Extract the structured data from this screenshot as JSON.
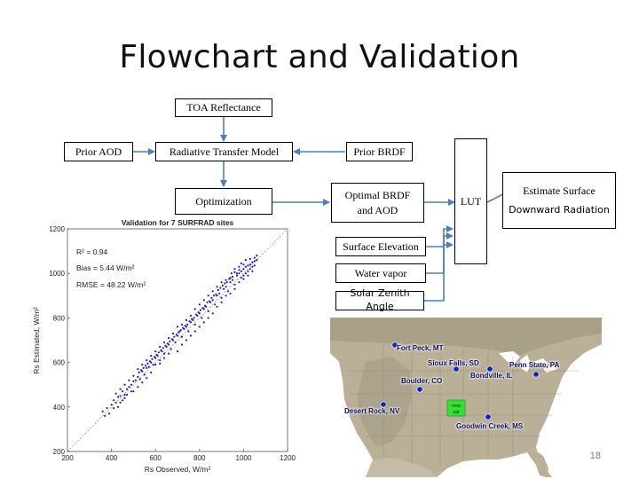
{
  "slide": {
    "title": "Flowchart and Validation",
    "page_number": "18"
  },
  "flowchart": {
    "toa_reflectance": "TOA Reflectance",
    "prior_aod": "Prior AOD",
    "radiative_transfer_model": "Radiative Transfer Model",
    "prior_brdf": "Prior BRDF",
    "optimization": "Optimization",
    "optimal_brdf_line1": "Optimal BRDF",
    "optimal_brdf_line2": "and AOD",
    "lut": "LUT",
    "estimate_line1": "Estimate Surface",
    "estimate_line2": "Downward Radiation",
    "surface_elevation": "Surface Elevation",
    "water_vapor": "Water vapor",
    "solar_zenith_angle": "Solar Zenith Angle"
  },
  "chart_data": {
    "type": "scatter",
    "title": "Validation for 7 SURFRAD sites",
    "xlabel": "Rs Observed, W/m²",
    "ylabel": "Rs Estimated, W/m²",
    "xlim": [
      200,
      1200
    ],
    "ylim": [
      200,
      1200
    ],
    "xticks": [
      "200",
      "400",
      "600",
      "800",
      "1000",
      "1200"
    ],
    "yticks": [
      "200",
      "400",
      "600",
      "800",
      "1000",
      "1200"
    ],
    "annotations": [
      "R² = 0.94",
      "Bias = 5.44 W/m²",
      "RMSE = 48.22 W/m²"
    ],
    "reference_line": "1:1",
    "point_color": "#1a1acc",
    "series": [
      {
        "points": [
          [
            360,
            380
          ],
          [
            380,
            395
          ],
          [
            400,
            410
          ],
          [
            410,
            430
          ],
          [
            420,
            420
          ],
          [
            430,
            445
          ],
          [
            440,
            450
          ],
          [
            450,
            470
          ],
          [
            460,
            455
          ],
          [
            470,
            480
          ],
          [
            480,
            490
          ],
          [
            490,
            500
          ],
          [
            500,
            515
          ],
          [
            510,
            520
          ],
          [
            520,
            535
          ],
          [
            530,
            525
          ],
          [
            540,
            560
          ],
          [
            550,
            545
          ],
          [
            560,
            575
          ],
          [
            570,
            580
          ],
          [
            580,
            600
          ],
          [
            590,
            590
          ],
          [
            600,
            620
          ],
          [
            610,
            630
          ],
          [
            620,
            610
          ],
          [
            630,
            650
          ],
          [
            640,
            640
          ],
          [
            650,
            670
          ],
          [
            660,
            680
          ],
          [
            670,
            660
          ],
          [
            680,
            700
          ],
          [
            690,
            690
          ],
          [
            700,
            720
          ],
          [
            710,
            740
          ],
          [
            720,
            715
          ],
          [
            730,
            750
          ],
          [
            740,
            760
          ],
          [
            750,
            740
          ],
          [
            760,
            780
          ],
          [
            770,
            790
          ],
          [
            780,
            770
          ],
          [
            790,
            810
          ],
          [
            800,
            820
          ],
          [
            810,
            800
          ],
          [
            820,
            840
          ],
          [
            830,
            850
          ],
          [
            840,
            830
          ],
          [
            850,
            870
          ],
          [
            860,
            880
          ],
          [
            870,
            860
          ],
          [
            880,
            900
          ],
          [
            890,
            910
          ],
          [
            900,
            890
          ],
          [
            910,
            930
          ],
          [
            920,
            940
          ],
          [
            930,
            920
          ],
          [
            940,
            960
          ],
          [
            950,
            970
          ],
          [
            960,
            950
          ],
          [
            970,
            990
          ],
          [
            980,
            1000
          ],
          [
            990,
            980
          ],
          [
            1000,
            1020
          ],
          [
            1010,
            1030
          ],
          [
            1020,
            1010
          ],
          [
            1030,
            1040
          ],
          [
            1040,
            1050
          ],
          [
            1050,
            1035
          ],
          [
            1060,
            1060
          ],
          [
            1000,
            990
          ],
          [
            990,
            1010
          ],
          [
            1010,
            1000
          ],
          [
            1020,
            1035
          ],
          [
            1030,
            1020
          ],
          [
            1040,
            1030
          ],
          [
            1050,
            1055
          ],
          [
            980,
            1015
          ],
          [
            970,
            1000
          ],
          [
            960,
            1005
          ],
          [
            950,
            985
          ],
          [
            945,
            1000
          ],
          [
            935,
            975
          ],
          [
            925,
            960
          ],
          [
            915,
            955
          ],
          [
            905,
            945
          ],
          [
            895,
            935
          ],
          [
            885,
            925
          ],
          [
            875,
            905
          ],
          [
            865,
            900
          ],
          [
            855,
            890
          ],
          [
            845,
            875
          ],
          [
            835,
            870
          ],
          [
            825,
            855
          ],
          [
            815,
            845
          ],
          [
            805,
            835
          ],
          [
            795,
            825
          ],
          [
            785,
            815
          ],
          [
            775,
            800
          ],
          [
            765,
            795
          ],
          [
            755,
            785
          ],
          [
            745,
            770
          ],
          [
            735,
            765
          ],
          [
            725,
            755
          ],
          [
            715,
            745
          ],
          [
            705,
            735
          ],
          [
            695,
            725
          ],
          [
            685,
            715
          ],
          [
            675,
            705
          ],
          [
            665,
            695
          ],
          [
            655,
            685
          ],
          [
            645,
            675
          ],
          [
            635,
            665
          ],
          [
            625,
            655
          ],
          [
            615,
            645
          ],
          [
            605,
            635
          ],
          [
            595,
            625
          ],
          [
            585,
            615
          ],
          [
            575,
            605
          ],
          [
            565,
            595
          ],
          [
            555,
            585
          ],
          [
            545,
            575
          ],
          [
            535,
            565
          ],
          [
            525,
            555
          ],
          [
            880,
            850
          ],
          [
            900,
            870
          ],
          [
            920,
            900
          ],
          [
            940,
            910
          ],
          [
            960,
            930
          ],
          [
            980,
            960
          ],
          [
            1000,
            975
          ],
          [
            1020,
            990
          ],
          [
            1040,
            1010
          ],
          [
            700,
            650
          ],
          [
            720,
            680
          ],
          [
            740,
            700
          ],
          [
            760,
            720
          ],
          [
            780,
            740
          ],
          [
            800,
            760
          ],
          [
            820,
            780
          ],
          [
            840,
            800
          ],
          [
            860,
            820
          ],
          [
            600,
            590
          ],
          [
            620,
            595
          ],
          [
            640,
            620
          ],
          [
            660,
            640
          ],
          [
            500,
            470
          ],
          [
            520,
            490
          ],
          [
            540,
            510
          ],
          [
            560,
            530
          ],
          [
            580,
            555
          ],
          [
            450,
            430
          ],
          [
            470,
            455
          ],
          [
            490,
            470
          ],
          [
            430,
            400
          ],
          [
            410,
            395
          ],
          [
            390,
            370
          ],
          [
            370,
            360
          ],
          [
            440,
            420
          ],
          [
            460,
            440
          ],
          [
            990,
            1045
          ],
          [
            1010,
            1060
          ],
          [
            1030,
            1065
          ],
          [
            1050,
            1070
          ],
          [
            1060,
            1080
          ],
          [
            1000,
            1040
          ],
          [
            980,
            1030
          ],
          [
            960,
            1020
          ],
          [
            940,
            980
          ],
          [
            920,
            970
          ],
          [
            900,
            960
          ],
          [
            880,
            940
          ],
          [
            860,
            920
          ],
          [
            840,
            900
          ],
          [
            820,
            880
          ],
          [
            800,
            860
          ],
          [
            780,
            840
          ],
          [
            760,
            810
          ],
          [
            740,
            790
          ],
          [
            720,
            770
          ],
          [
            700,
            760
          ],
          [
            680,
            730
          ],
          [
            660,
            710
          ],
          [
            640,
            690
          ],
          [
            620,
            670
          ],
          [
            600,
            650
          ],
          [
            580,
            630
          ],
          [
            560,
            610
          ],
          [
            540,
            590
          ],
          [
            520,
            570
          ],
          [
            500,
            540
          ],
          [
            480,
            520
          ],
          [
            460,
            500
          ],
          [
            440,
            480
          ],
          [
            420,
            460
          ]
        ]
      }
    ]
  },
  "map": {
    "land_color": "#b9b097",
    "water_color": "#ffffff",
    "station_color": "#1020c8",
    "sites": [
      {
        "name": "Fort Peck, MT"
      },
      {
        "name": "Sioux Falls, SD"
      },
      {
        "name": "Bondville, IL"
      },
      {
        "name": "Penn State, PA"
      },
      {
        "name": "Boulder, CO"
      },
      {
        "name": "Desert Rock, NV"
      },
      {
        "name": "Goodwin Creek, MS"
      }
    ],
    "inset_label_line1": "new",
    "inset_label_line2": "sat"
  }
}
